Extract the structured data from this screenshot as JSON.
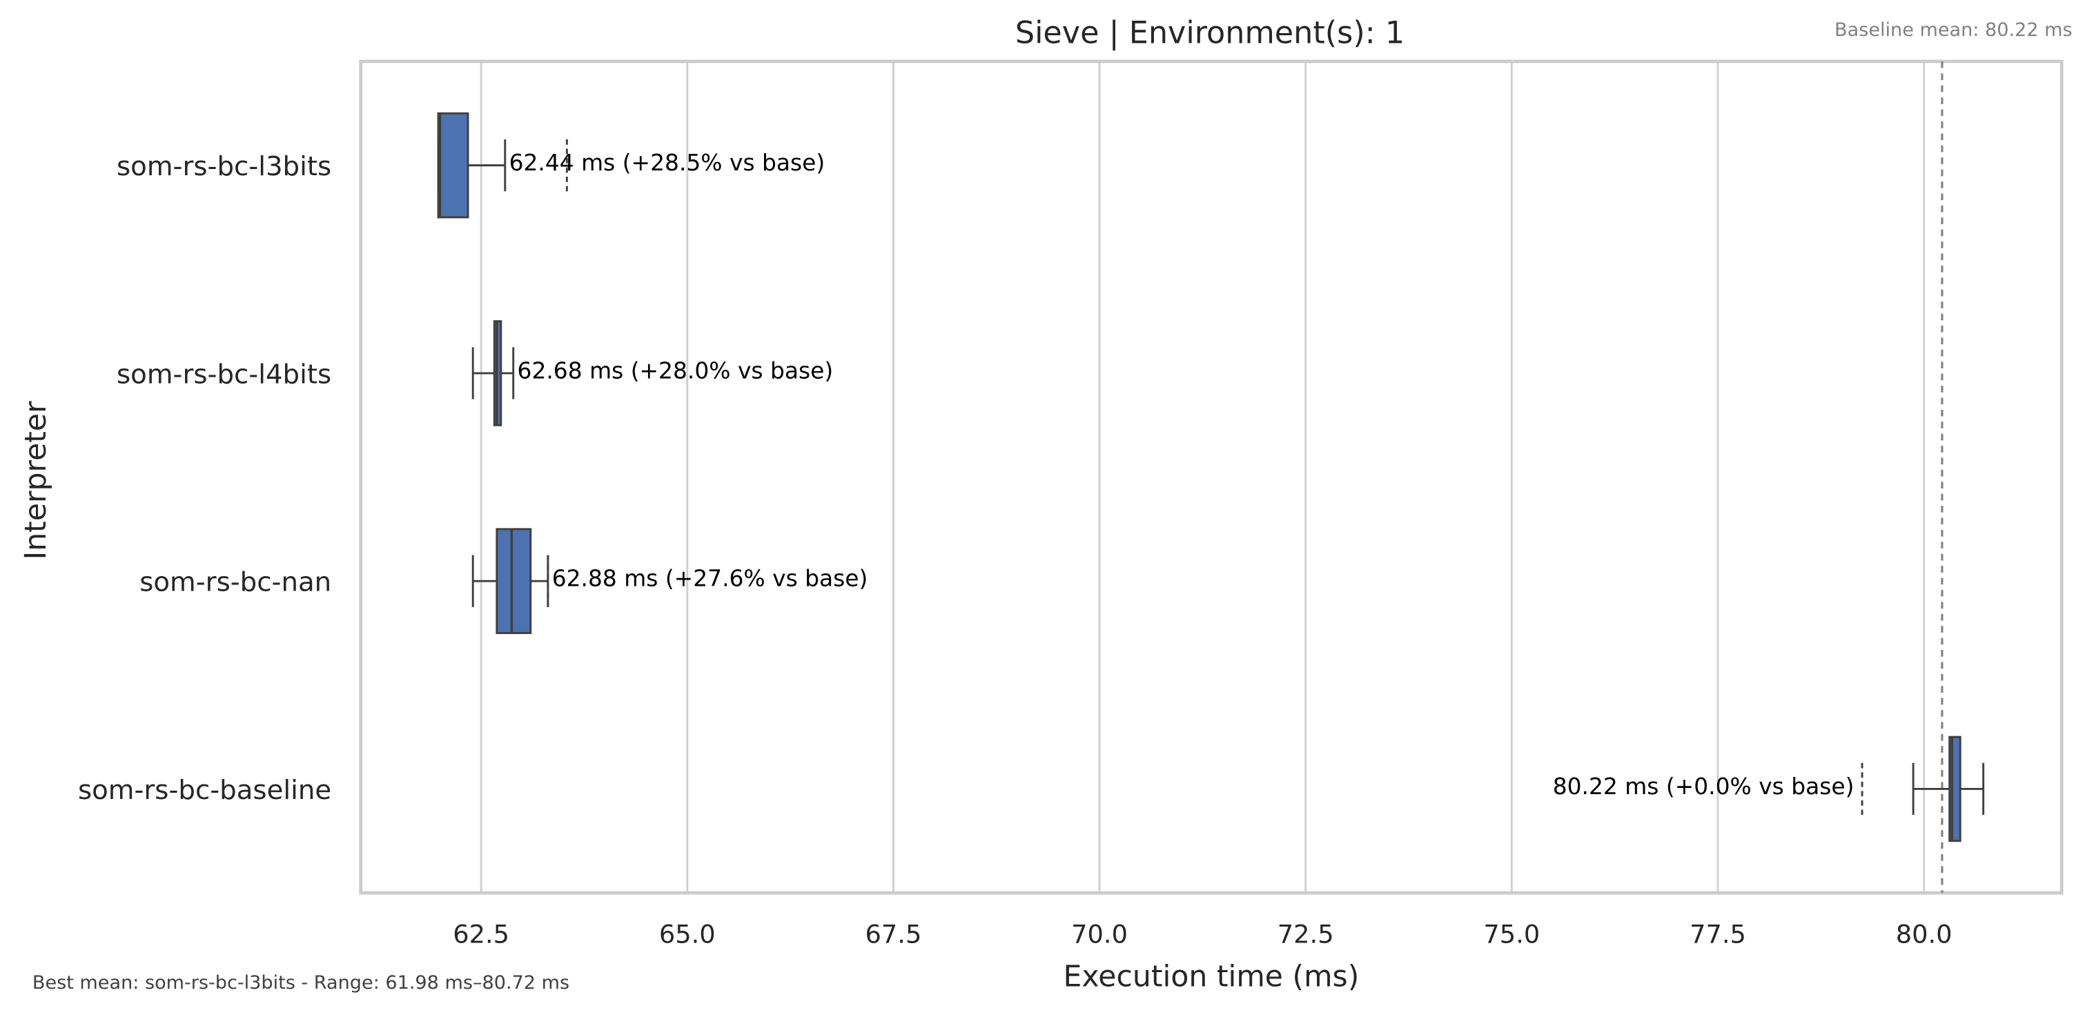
{
  "chart_data": {
    "type": "boxplot",
    "orientation": "horizontal",
    "title": "Sieve | Environment(s): 1",
    "xlabel": "Execution time (ms)",
    "ylabel": "Interpreter",
    "baseline_annotation": "Baseline mean: 80.22 ms",
    "footer": "Best mean: som-rs-bc-l3bits - Range: 61.98 ms–80.72 ms",
    "baseline_mean": 80.22,
    "color": "#4c72b0",
    "grid": true,
    "xlim": [
      61.04,
      81.67
    ],
    "xticks": [
      62.5,
      {
        "value": 65,
        "label": "65.0"
      },
      67.5,
      {
        "value": 70,
        "label": "70.0"
      },
      72.5,
      {
        "value": 75,
        "label": "75.0"
      },
      77.5,
      {
        "value": 80,
        "label": "80.0"
      }
    ],
    "categories": [
      "som-rs-bc-l3bits",
      "som-rs-bc-l4bits",
      "som-rs-bc-nan",
      "som-rs-bc-baseline"
    ],
    "boxes": [
      {
        "min": 61.98,
        "q1": 61.98,
        "median": 62.0,
        "q3": 62.34,
        "max": 62.79,
        "outliers": [
          63.54
        ]
      },
      {
        "min": 62.4,
        "q1": 62.66,
        "median": 62.69,
        "q3": 62.74,
        "max": 62.89,
        "outliers": []
      },
      {
        "min": 62.4,
        "q1": 62.69,
        "median": 62.87,
        "q3": 63.1,
        "max": 63.31,
        "outliers": [
          63.31
        ]
      },
      {
        "min": 79.87,
        "q1": 80.31,
        "median": 80.34,
        "q3": 80.44,
        "max": 80.72,
        "outliers": [
          79.25
        ]
      }
    ],
    "means": [
      62.44,
      62.68,
      62.88,
      80.22
    ],
    "value_labels": [
      "62.44 ms  (+28.5% vs base)",
      "62.68 ms  (+28.0% vs base)",
      "62.88 ms  (+27.6% vs base)",
      "80.22 ms  (+0.0% vs base)"
    ]
  }
}
